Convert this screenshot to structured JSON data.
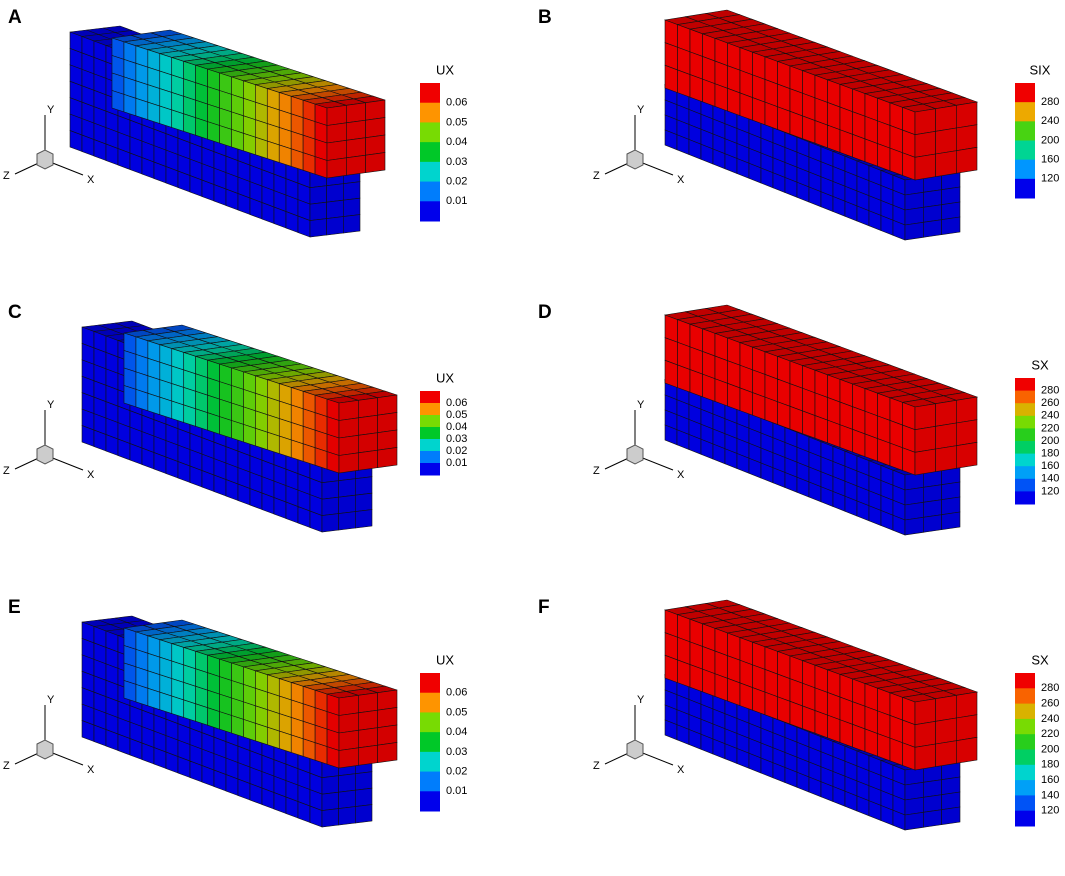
{
  "panels": [
    {
      "label": "A",
      "legend_title": "UX",
      "legend_ticks": [
        "0.06",
        "0.05",
        "0.04",
        "0.03",
        "0.02",
        "0.01"
      ]
    },
    {
      "label": "B",
      "legend_title": "SIX",
      "legend_ticks": [
        "280",
        "240",
        "200",
        "160",
        "120"
      ]
    },
    {
      "label": "C",
      "legend_title": "UX",
      "legend_ticks": [
        "0.06",
        "0.05",
        "0.04",
        "0.03",
        "0.02",
        "0.01"
      ]
    },
    {
      "label": "D",
      "legend_title": "SX",
      "legend_ticks": [
        "280",
        "260",
        "240",
        "220",
        "200",
        "180",
        "160",
        "140",
        "120"
      ]
    },
    {
      "label": "E",
      "legend_title": "UX",
      "legend_ticks": [
        "0.06",
        "0.05",
        "0.04",
        "0.03",
        "0.02",
        "0.01"
      ]
    },
    {
      "label": "F",
      "legend_title": "SX",
      "legend_ticks": [
        "280",
        "260",
        "240",
        "220",
        "200",
        "180",
        "160",
        "140",
        "120"
      ]
    }
  ],
  "axes": {
    "x": "X",
    "y": "Y",
    "z": "Z"
  }
}
